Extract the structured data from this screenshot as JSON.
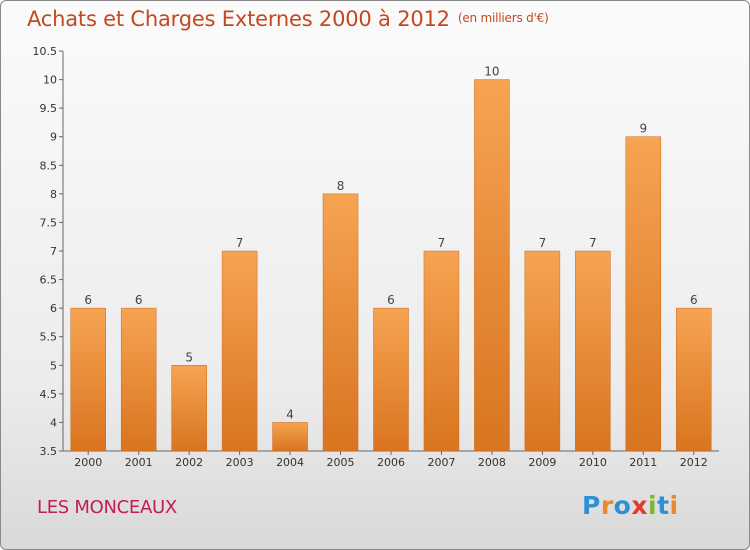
{
  "header": {
    "title": "Achats et Charges Externes 2000 à 2012",
    "subtitle": "(en milliers d'€)"
  },
  "footer": {
    "town": "LES MONCEAUX",
    "logo_letters": [
      "P",
      "r",
      "o",
      "x",
      "i",
      "t",
      "i"
    ],
    "logo_colors": [
      "#2f8fd6",
      "#e8892a",
      "#2f8fd6",
      "#e23b2e",
      "#7cb732",
      "#2f8fd6",
      "#e8892a"
    ]
  },
  "chart_data": {
    "type": "bar",
    "title": "Achats et Charges Externes 2000 à 2012",
    "subtitle": "(en milliers d'€)",
    "categories": [
      "2000",
      "2001",
      "2002",
      "2003",
      "2004",
      "2005",
      "2006",
      "2007",
      "2008",
      "2009",
      "2010",
      "2011",
      "2012"
    ],
    "values": [
      6,
      6,
      5,
      7,
      4,
      8,
      6,
      7,
      10,
      7,
      7,
      9,
      6
    ],
    "ylim": [
      3.5,
      10.5
    ],
    "yticks": [
      "3.5",
      "4",
      "4.5",
      "5",
      "5.5",
      "6",
      "6.5",
      "7",
      "7.5",
      "8",
      "8.5",
      "9",
      "9.5",
      "10",
      "10.5"
    ],
    "grid": false,
    "bar_color_top": "#f6a452",
    "bar_color_bottom": "#d9741f"
  }
}
